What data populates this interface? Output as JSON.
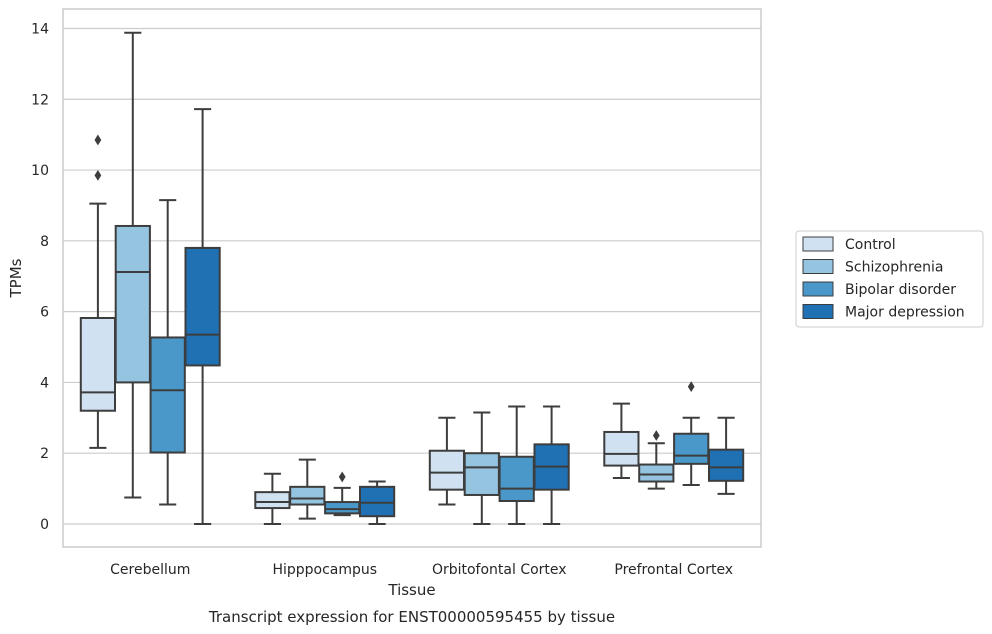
{
  "chart_data": {
    "type": "box",
    "title": "",
    "xlabel": "Tissue",
    "ylabel": "TPMs",
    "caption": "Transcript expression for ENST00000595455 by tissue",
    "ylim": [
      -0.65,
      14.55
    ],
    "yticks": [
      0,
      2,
      4,
      6,
      8,
      10,
      12,
      14
    ],
    "grid": "horizontal",
    "legend_position": "right",
    "categories": [
      "Cerebellum",
      "Hipppocampus",
      "Orbitofontal Cortex",
      "Prefrontal Cortex"
    ],
    "series": [
      {
        "name": "Control",
        "color": "#d0e1f2",
        "boxes": [
          {
            "whislo": 2.15,
            "q1": 3.2,
            "med": 3.72,
            "q3": 5.82,
            "whishi": 9.05,
            "fliers": [
              9.85,
              10.85
            ]
          },
          {
            "whislo": 0.0,
            "q1": 0.45,
            "med": 0.62,
            "q3": 0.9,
            "whishi": 1.42,
            "fliers": []
          },
          {
            "whislo": 0.55,
            "q1": 0.97,
            "med": 1.45,
            "q3": 2.07,
            "whishi": 3.0,
            "fliers": []
          },
          {
            "whislo": 1.3,
            "q1": 1.65,
            "med": 1.98,
            "q3": 2.6,
            "whishi": 3.4,
            "fliers": []
          }
        ]
      },
      {
        "name": "Schizophrenia",
        "color": "#94c4df",
        "boxes": [
          {
            "whislo": 0.75,
            "q1": 4.0,
            "med": 7.12,
            "q3": 8.42,
            "whishi": 13.88,
            "fliers": []
          },
          {
            "whislo": 0.15,
            "q1": 0.55,
            "med": 0.72,
            "q3": 1.05,
            "whishi": 1.82,
            "fliers": []
          },
          {
            "whislo": 0.0,
            "q1": 0.82,
            "med": 1.6,
            "q3": 2.0,
            "whishi": 3.15,
            "fliers": []
          },
          {
            "whislo": 1.0,
            "q1": 1.2,
            "med": 1.4,
            "q3": 1.68,
            "whishi": 2.28,
            "fliers": [
              2.5
            ]
          }
        ]
      },
      {
        "name": "Bipolar disorder",
        "color": "#4a98c9",
        "boxes": [
          {
            "whislo": 0.55,
            "q1": 2.02,
            "med": 3.78,
            "q3": 5.27,
            "whishi": 9.15,
            "fliers": []
          },
          {
            "whislo": 0.25,
            "q1": 0.3,
            "med": 0.42,
            "q3": 0.62,
            "whishi": 1.02,
            "fliers": [
              1.33
            ]
          },
          {
            "whislo": 0.0,
            "q1": 0.65,
            "med": 1.0,
            "q3": 1.9,
            "whishi": 3.32,
            "fliers": []
          },
          {
            "whislo": 1.1,
            "q1": 1.7,
            "med": 1.93,
            "q3": 2.55,
            "whishi": 3.0,
            "fliers": [
              3.88
            ]
          }
        ]
      },
      {
        "name": "Major depression",
        "color": "#2070b4",
        "boxes": [
          {
            "whislo": 0.0,
            "q1": 4.48,
            "med": 5.35,
            "q3": 7.8,
            "whishi": 11.72,
            "fliers": []
          },
          {
            "whislo": 0.0,
            "q1": 0.22,
            "med": 0.6,
            "q3": 1.05,
            "whishi": 1.2,
            "fliers": []
          },
          {
            "whislo": 0.0,
            "q1": 0.97,
            "med": 1.62,
            "q3": 2.25,
            "whishi": 3.32,
            "fliers": []
          },
          {
            "whislo": 0.85,
            "q1": 1.22,
            "med": 1.6,
            "q3": 2.1,
            "whishi": 3.0,
            "fliers": []
          }
        ]
      }
    ]
  }
}
